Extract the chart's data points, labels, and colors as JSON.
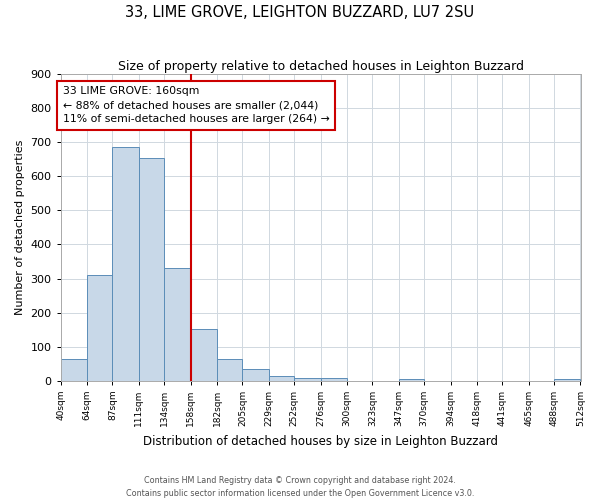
{
  "title": "33, LIME GROVE, LEIGHTON BUZZARD, LU7 2SU",
  "subtitle": "Size of property relative to detached houses in Leighton Buzzard",
  "xlabel": "Distribution of detached houses by size in Leighton Buzzard",
  "ylabel": "Number of detached properties",
  "bar_edges": [
    40,
    64,
    87,
    111,
    134,
    158,
    182,
    205,
    229,
    252,
    276,
    300,
    323,
    347,
    370,
    394,
    418,
    441,
    465,
    488,
    512
  ],
  "bar_heights": [
    63,
    310,
    685,
    653,
    330,
    153,
    65,
    35,
    15,
    8,
    8,
    0,
    0,
    5,
    0,
    0,
    0,
    0,
    0,
    5
  ],
  "bar_color": "#c8d8e8",
  "bar_edge_color": "#5b8db8",
  "vline_x": 158,
  "vline_color": "#cc0000",
  "annotation_line1": "33 LIME GROVE: 160sqm",
  "annotation_line2": "← 88% of detached houses are smaller (2,044)",
  "annotation_line3": "11% of semi-detached houses are larger (264) →",
  "annotation_box_color": "#cc0000",
  "ylim": [
    0,
    900
  ],
  "yticks": [
    0,
    100,
    200,
    300,
    400,
    500,
    600,
    700,
    800,
    900
  ],
  "tick_labels": [
    "40sqm",
    "64sqm",
    "87sqm",
    "111sqm",
    "134sqm",
    "158sqm",
    "182sqm",
    "205sqm",
    "229sqm",
    "252sqm",
    "276sqm",
    "300sqm",
    "323sqm",
    "347sqm",
    "370sqm",
    "394sqm",
    "418sqm",
    "441sqm",
    "465sqm",
    "488sqm",
    "512sqm"
  ],
  "footer_line1": "Contains HM Land Registry data © Crown copyright and database right 2024.",
  "footer_line2": "Contains public sector information licensed under the Open Government Licence v3.0.",
  "bg_color": "#ffffff",
  "grid_color": "#d0d8e0"
}
